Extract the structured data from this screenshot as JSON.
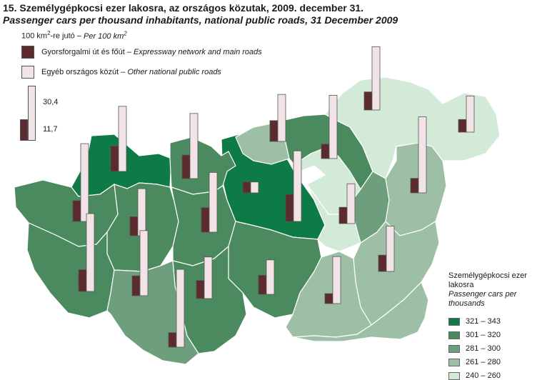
{
  "title": {
    "hu": "15. Személygépkocsi ezer lakosra, az országos közutak, 2009. december 31.",
    "en": "Passenger cars per thousand inhabitants, national public roads, 31 December 2009"
  },
  "unit": {
    "hu": "100 km",
    "sup": "2",
    "mid": "-re jutó – ",
    "en": "Per 100 km",
    "en_sup": "2"
  },
  "bar_legend": {
    "main": {
      "hu": "Gyorsforgalmi út és főút",
      "en": "Expressway network and main roads",
      "color": "#5c2b2e"
    },
    "other": {
      "hu": "Egyéb országos közút",
      "en": "Other national public roads",
      "color": "#f2e3e6"
    },
    "scale_other": "30,4",
    "scale_main": "11,7"
  },
  "choropleth_legend": {
    "title_hu": "Személygépkocsi ezer lakosra",
    "title_en": "Passenger cars per thousands",
    "classes": [
      {
        "label": "321 – 343",
        "color": "#0e7a45"
      },
      {
        "label": "301 – 320",
        "color": "#4b8a5e"
      },
      {
        "label": "281 – 300",
        "color": "#6e9f7c"
      },
      {
        "label": "261 – 280",
        "color": "#9cbfa5"
      },
      {
        "label": "240 – 260",
        "color": "#d3ead9"
      }
    ]
  },
  "regions": [
    {
      "class": 0,
      "main": 14.0,
      "other": 36.0
    },
    {
      "class": 0,
      "main": 6.0,
      "other": 6.0
    },
    {
      "class": 0,
      "main": 15.0,
      "other": 39.0
    },
    {
      "class": 1,
      "main": 11.5,
      "other": 43.0
    },
    {
      "class": 1,
      "main": 13.0,
      "other": 36.0
    },
    {
      "class": 1,
      "main": 10.5,
      "other": 26.0
    },
    {
      "class": 1,
      "main": 13.5,
      "other": 33.0
    },
    {
      "class": 1,
      "main": 12.0,
      "other": 43.0
    },
    {
      "class": 1,
      "main": 10.5,
      "other": 19.0
    },
    {
      "class": 1,
      "main": 8.0,
      "other": 35.0
    },
    {
      "class": 1,
      "main": 10.0,
      "other": 23.0
    },
    {
      "class": 2,
      "main": 11.0,
      "other": 36.0
    },
    {
      "class": 2,
      "main": 9.0,
      "other": 22.0
    },
    {
      "class": 2,
      "main": 11.5,
      "other": 26.0
    },
    {
      "class": 3,
      "main": 8.0,
      "other": 42.0
    },
    {
      "class": 3,
      "main": 9.0,
      "other": 25.0
    },
    {
      "class": 3,
      "main": 5.5,
      "other": 26.0
    },
    {
      "class": 3,
      "main": 8.0,
      "other": 43.0
    },
    {
      "class": 3,
      "main": 10.0,
      "other": 31.0
    },
    {
      "class": 4,
      "main": 8.0,
      "other": 30.0
    },
    {
      "class": 4,
      "main": 10.0,
      "other": 35.0
    },
    {
      "class": 4,
      "main": 7.0,
      "other": 20.0
    }
  ]
}
